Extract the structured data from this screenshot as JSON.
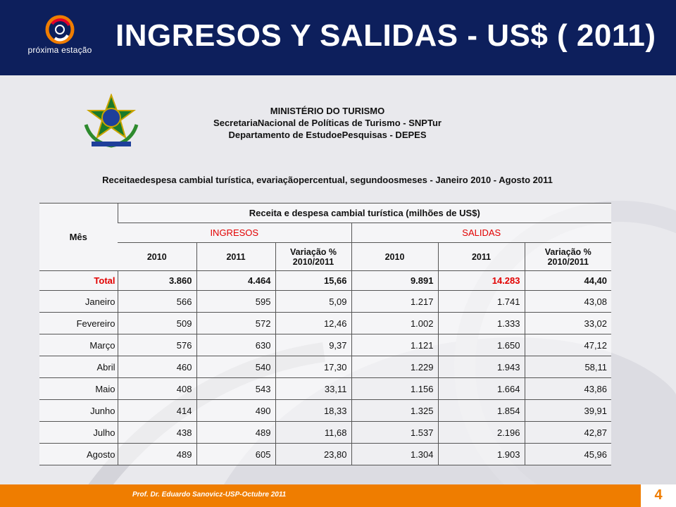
{
  "header": {
    "title": "INGRESOS Y SALIDAS - US$ ( 2011)",
    "logo_text": "próxima estação",
    "background_color": "#0d1f5c"
  },
  "ministry": {
    "line1": "MINISTÉRIO DO TURISMO",
    "line2": "SecretariaNacional de Políticas de Turismo - SNPTur",
    "line3": "Departamento de EstudoePesquisas - DEPES"
  },
  "subtitle": "Receitaedespesa cambial turística, evariaçãopercentual, segundoosmeses - Janeiro 2010 - Agosto 2011",
  "table": {
    "col_mes": "Mês",
    "group_header": "Receita e despesa cambial turística (milhões de US$)",
    "ingresos_label": "INGRESOS",
    "salidas_label": "SALIDAS",
    "sub_headers": [
      "2010",
      "2011",
      "Variação % 2010/2011",
      "2010",
      "2011",
      "Variação % 2010/2011"
    ],
    "total_row": {
      "label": "Total",
      "values": [
        "3.860",
        "4.464",
        "15,66",
        "9.891",
        "14.283",
        "44,40"
      ]
    },
    "rows": [
      {
        "mes": "Janeiro",
        "values": [
          "566",
          "595",
          "5,09",
          "1.217",
          "1.741",
          "43,08"
        ]
      },
      {
        "mes": "Fevereiro",
        "values": [
          "509",
          "572",
          "12,46",
          "1.002",
          "1.333",
          "33,02"
        ]
      },
      {
        "mes": "Março",
        "values": [
          "576",
          "630",
          "9,37",
          "1.121",
          "1.650",
          "47,12"
        ]
      },
      {
        "mes": "Abril",
        "values": [
          "460",
          "540",
          "17,30",
          "1.229",
          "1.943",
          "58,11"
        ]
      },
      {
        "mes": "Maio",
        "values": [
          "408",
          "543",
          "33,11",
          "1.156",
          "1.664",
          "43,86"
        ]
      },
      {
        "mes": "Junho",
        "values": [
          "414",
          "490",
          "18,33",
          "1.325",
          "1.854",
          "39,91"
        ]
      },
      {
        "mes": "Julho",
        "values": [
          "438",
          "489",
          "11,68",
          "1.537",
          "2.196",
          "42,87"
        ]
      },
      {
        "mes": "Agosto",
        "values": [
          "489",
          "605",
          "23,80",
          "1.304",
          "1.903",
          "45,96"
        ]
      }
    ]
  },
  "footer": {
    "text": "Prof. Dr. Eduardo Sanovicz-USP-Octubre 2011",
    "page_number": "4",
    "accent_color": "#ef7d00"
  },
  "colors": {
    "highlight_red": "#e20000"
  }
}
